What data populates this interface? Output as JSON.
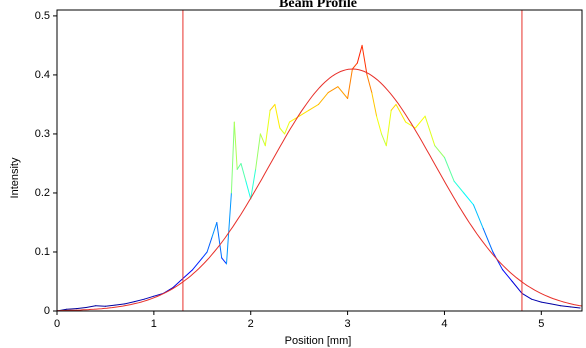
{
  "chart_data": {
    "type": "line",
    "title": "Beam Profile",
    "xlabel": "Position [mm]",
    "ylabel": "Intensity",
    "xlim": [
      0,
      5.42
    ],
    "ylim": [
      0,
      0.51
    ],
    "x_ticks": [
      0,
      1,
      2,
      3,
      4,
      5
    ],
    "y_ticks": [
      0,
      0.1,
      0.2,
      0.3,
      0.4,
      0.5
    ],
    "x_tick_labels": [
      "0",
      "1",
      "2",
      "3",
      "4",
      "5"
    ],
    "y_tick_labels": [
      "0",
      "0.1",
      "0.2",
      "0.3",
      "0.4",
      "0.5"
    ],
    "grid": false,
    "colors": {
      "fit": "#e8302a",
      "cursor": "#e8302a",
      "axes": "#000000",
      "colormap": [
        "#00008f",
        "#0000ff",
        "#007fff",
        "#00ffff",
        "#7fff7f",
        "#ffff00",
        "#ff7f00",
        "#ff0000"
      ]
    },
    "cursors": [
      {
        "x": 1.3
      },
      {
        "x": 4.8
      }
    ],
    "series": [
      {
        "role": "measured",
        "colored_by_value": true,
        "x": [
          0,
          0.1,
          0.2,
          0.3,
          0.4,
          0.5,
          0.6,
          0.7,
          0.8,
          0.9,
          1.0,
          1.1,
          1.2,
          1.3,
          1.4,
          1.5,
          1.55,
          1.6,
          1.65,
          1.7,
          1.75,
          1.8,
          1.83,
          1.86,
          1.9,
          1.95,
          2.0,
          2.05,
          2.1,
          2.15,
          2.2,
          2.25,
          2.3,
          2.35,
          2.4,
          2.5,
          2.6,
          2.7,
          2.8,
          2.9,
          3.0,
          3.05,
          3.1,
          3.15,
          3.2,
          3.25,
          3.3,
          3.35,
          3.4,
          3.45,
          3.5,
          3.6,
          3.7,
          3.8,
          3.9,
          4.0,
          4.1,
          4.2,
          4.3,
          4.4,
          4.5,
          4.6,
          4.7,
          4.8,
          4.9,
          5.0,
          5.1,
          5.2,
          5.3,
          5.4
        ],
        "y": [
          0.0,
          0.003,
          0.004,
          0.006,
          0.009,
          0.008,
          0.01,
          0.012,
          0.016,
          0.02,
          0.025,
          0.03,
          0.04,
          0.055,
          0.07,
          0.09,
          0.1,
          0.125,
          0.15,
          0.09,
          0.08,
          0.2,
          0.32,
          0.24,
          0.25,
          0.22,
          0.19,
          0.24,
          0.3,
          0.28,
          0.34,
          0.35,
          0.31,
          0.3,
          0.32,
          0.33,
          0.34,
          0.35,
          0.37,
          0.38,
          0.36,
          0.41,
          0.42,
          0.45,
          0.4,
          0.37,
          0.33,
          0.3,
          0.28,
          0.34,
          0.35,
          0.32,
          0.31,
          0.33,
          0.28,
          0.26,
          0.22,
          0.2,
          0.18,
          0.14,
          0.1,
          0.07,
          0.05,
          0.03,
          0.02,
          0.015,
          0.012,
          0.009,
          0.007,
          0.005
        ]
      },
      {
        "role": "gaussian-fit",
        "peak": 0.41,
        "center": 3.05,
        "sigma": 0.85,
        "x_range": [
          0,
          5.42
        ]
      }
    ]
  }
}
